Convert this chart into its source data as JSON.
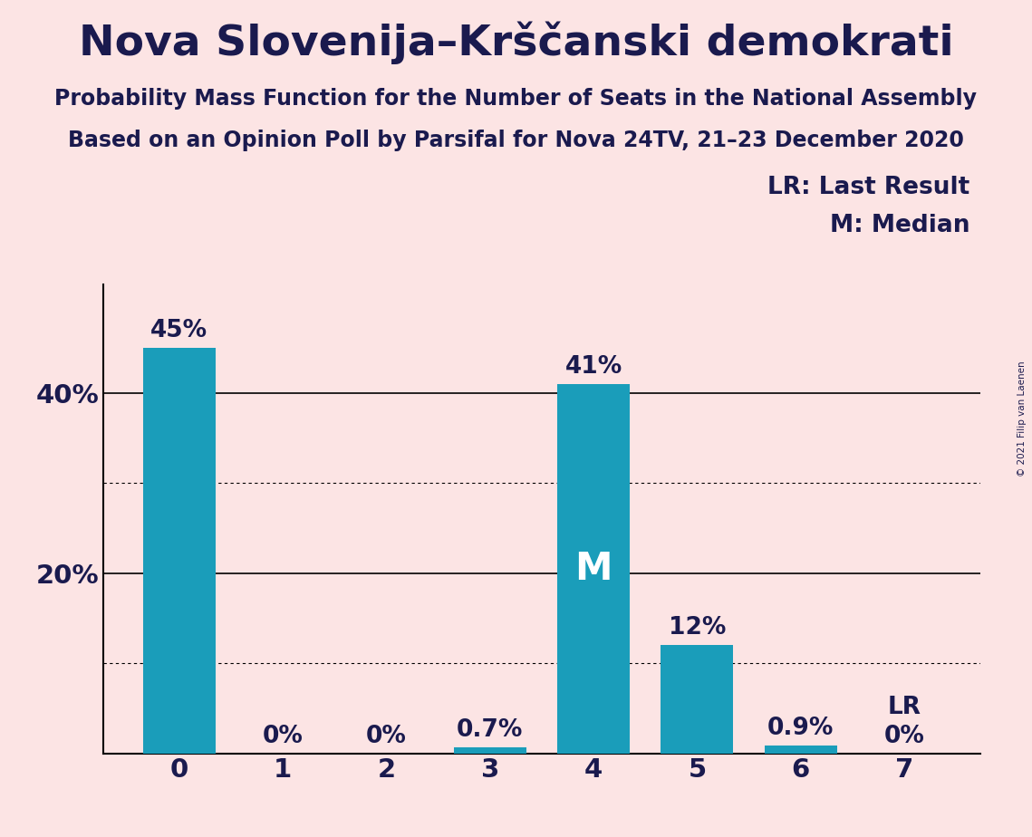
{
  "title": "Nova Slovenija–Krščanski demokrati",
  "subtitle1": "Probability Mass Function for the Number of Seats in the National Assembly",
  "subtitle2": "Based on an Opinion Poll by Parsifal for Nova 24TV, 21–23 December 2020",
  "copyright": "© 2021 Filip van Laenen",
  "categories": [
    0,
    1,
    2,
    3,
    4,
    5,
    6,
    7
  ],
  "values": [
    0.45,
    0.0,
    0.0,
    0.007,
    0.41,
    0.12,
    0.009,
    0.0
  ],
  "bar_labels": [
    "45%",
    "0%",
    "0%",
    "0.7%",
    "41%",
    "12%",
    "0.9%",
    "0%"
  ],
  "bar_color": "#1a9dba",
  "background_color": "#fce4e4",
  "text_color": "#1a1a4e",
  "median_seat": 4,
  "median_label": "M",
  "lr_seat": 7,
  "lr_label": "LR",
  "legend_lr": "LR: Last Result",
  "legend_m": "M: Median",
  "yticks": [
    0.0,
    0.2,
    0.4
  ],
  "ytick_labels": [
    "",
    "20%",
    "40%"
  ],
  "ylim": [
    0,
    0.52
  ],
  "dotted_gridlines": [
    0.1,
    0.3
  ],
  "solid_gridlines": [
    0.2,
    0.4
  ],
  "title_fontsize": 34,
  "subtitle_fontsize": 17,
  "label_fontsize": 19,
  "tick_fontsize": 21,
  "median_fontsize": 30,
  "legend_fontsize": 19
}
